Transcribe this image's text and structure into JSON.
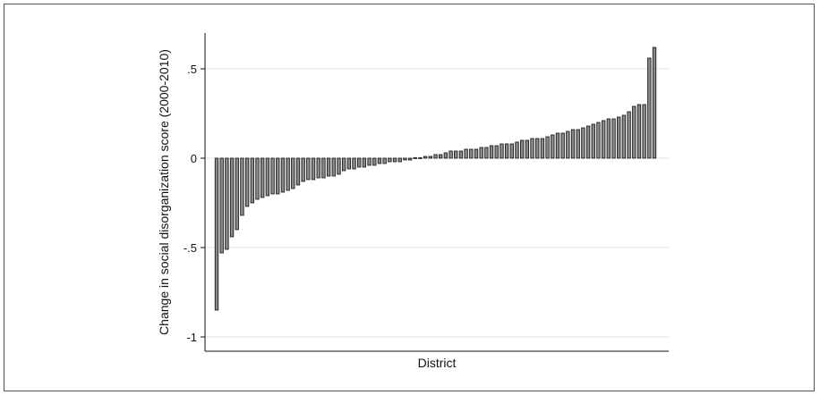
{
  "chart_data": {
    "type": "bar",
    "title": "",
    "xlabel": "District",
    "ylabel": "Change in social disorganization score (2000-2010)",
    "ylim": [
      -1.1,
      0.7
    ],
    "yticks": [
      {
        "value": 0.5,
        "label": ".5"
      },
      {
        "value": 0,
        "label": "0"
      },
      {
        "value": -0.5,
        "label": "-.5"
      },
      {
        "value": -1,
        "label": "-1"
      }
    ],
    "grid": true,
    "legend": "none",
    "bar_fill": "#888888",
    "bar_stroke": "#111111",
    "gridline_color": "#e6e6e6",
    "values": [
      -0.85,
      -0.53,
      -0.51,
      -0.44,
      -0.4,
      -0.32,
      -0.27,
      -0.25,
      -0.23,
      -0.22,
      -0.21,
      -0.2,
      -0.2,
      -0.19,
      -0.18,
      -0.17,
      -0.15,
      -0.13,
      -0.12,
      -0.12,
      -0.11,
      -0.11,
      -0.1,
      -0.1,
      -0.09,
      -0.07,
      -0.06,
      -0.06,
      -0.05,
      -0.05,
      -0.04,
      -0.04,
      -0.03,
      -0.03,
      -0.02,
      -0.02,
      -0.02,
      -0.01,
      -0.01,
      0.0,
      0.0,
      0.01,
      0.01,
      0.02,
      0.02,
      0.03,
      0.04,
      0.04,
      0.04,
      0.05,
      0.05,
      0.05,
      0.06,
      0.06,
      0.07,
      0.07,
      0.08,
      0.08,
      0.08,
      0.09,
      0.1,
      0.1,
      0.11,
      0.11,
      0.11,
      0.12,
      0.13,
      0.14,
      0.14,
      0.15,
      0.16,
      0.16,
      0.17,
      0.18,
      0.19,
      0.2,
      0.21,
      0.22,
      0.22,
      0.23,
      0.24,
      0.26,
      0.29,
      0.3,
      0.3,
      0.56,
      0.62
    ]
  }
}
